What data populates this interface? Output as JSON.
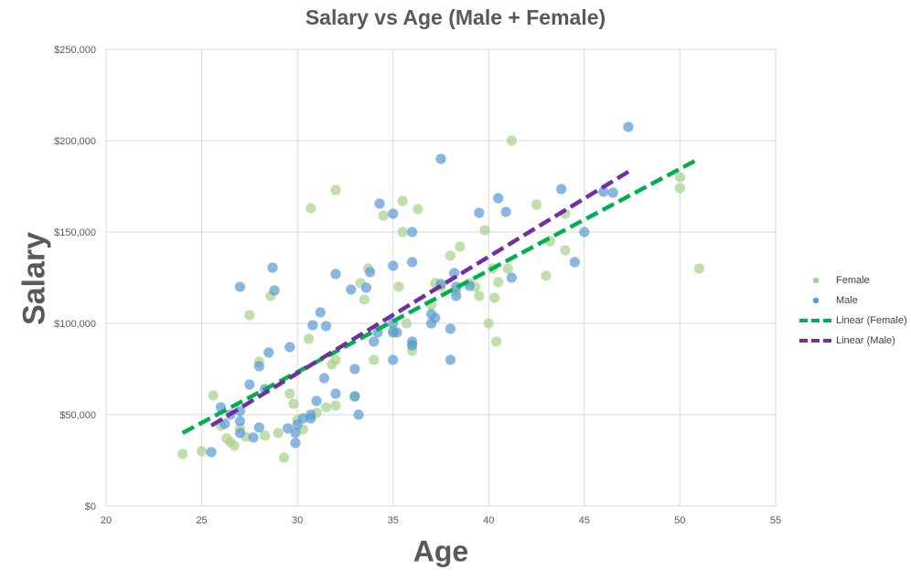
{
  "chart_data": {
    "type": "scatter",
    "title": "Salary vs Age (Male + Female)",
    "xlabel": "Age",
    "ylabel": "Salary",
    "xlim": [
      20,
      55
    ],
    "ylim": [
      0,
      250000
    ],
    "x_ticks": [
      "20",
      "25",
      "30",
      "35",
      "40",
      "45",
      "50",
      "55"
    ],
    "y_ticks": [
      "$0",
      "$50,000",
      "$100,000",
      "$150,000",
      "$200,000",
      "$250,000"
    ],
    "x_tick_values": [
      20,
      25,
      30,
      35,
      40,
      45,
      50,
      55
    ],
    "y_tick_values": [
      0,
      50000,
      100000,
      150000,
      200000,
      250000
    ],
    "grid": true,
    "legend_position": "right",
    "series": [
      {
        "name": "Female",
        "color": "#a9d18e",
        "points": [
          [
            24,
            28500
          ],
          [
            25,
            30000
          ],
          [
            25.6,
            60500
          ],
          [
            26,
            44000
          ],
          [
            26.3,
            37000
          ],
          [
            26.5,
            35000
          ],
          [
            26.7,
            33000
          ],
          [
            27,
            42500
          ],
          [
            27.3,
            38000
          ],
          [
            27.5,
            104500
          ],
          [
            28,
            79000
          ],
          [
            28.3,
            38500
          ],
          [
            28.6,
            115000
          ],
          [
            29,
            40000
          ],
          [
            29.3,
            26500
          ],
          [
            29.6,
            61500
          ],
          [
            29.8,
            56000
          ],
          [
            30,
            47000
          ],
          [
            30.3,
            42000
          ],
          [
            30.6,
            91500
          ],
          [
            30.7,
            163000
          ],
          [
            31,
            51000
          ],
          [
            31.5,
            54000
          ],
          [
            31.8,
            77500
          ],
          [
            32,
            55000
          ],
          [
            32,
            80000
          ],
          [
            32,
            173000
          ],
          [
            33,
            60000
          ],
          [
            33.3,
            122000
          ],
          [
            33.5,
            113000
          ],
          [
            33.7,
            130000
          ],
          [
            34,
            80000
          ],
          [
            34.5,
            159000
          ],
          [
            35,
            96000
          ],
          [
            35.3,
            120000
          ],
          [
            35.5,
            167000
          ],
          [
            35.5,
            150000
          ],
          [
            35.7,
            100000
          ],
          [
            36,
            85000
          ],
          [
            36,
            88000
          ],
          [
            36.3,
            162500
          ],
          [
            37,
            110000
          ],
          [
            37.2,
            122000
          ],
          [
            37.5,
            120000
          ],
          [
            38,
            137000
          ],
          [
            38.3,
            118000
          ],
          [
            38.5,
            142000
          ],
          [
            39,
            122000
          ],
          [
            39.3,
            120000
          ],
          [
            39.5,
            115000
          ],
          [
            39.8,
            151000
          ],
          [
            40,
            100000
          ],
          [
            40.2,
            130000
          ],
          [
            40.3,
            114000
          ],
          [
            40.4,
            90000
          ],
          [
            40.5,
            122500
          ],
          [
            41,
            130000
          ],
          [
            41.2,
            200000
          ],
          [
            42.5,
            165000
          ],
          [
            43,
            126000
          ],
          [
            43.2,
            145000
          ],
          [
            44,
            160000
          ],
          [
            44,
            140000
          ],
          [
            50,
            174000
          ],
          [
            50,
            180000
          ],
          [
            51,
            130000
          ]
        ],
        "trendline": {
          "name": "Linear (Female)",
          "color": "#00b050",
          "x_range": [
            24,
            50.8
          ],
          "y_range": [
            40000,
            189000
          ]
        }
      },
      {
        "name": "Male",
        "color": "#5b9bd5",
        "points": [
          [
            25.5,
            29500
          ],
          [
            26,
            54000
          ],
          [
            26.2,
            45000
          ],
          [
            26.5,
            50000
          ],
          [
            27,
            120000
          ],
          [
            27,
            46500
          ],
          [
            27,
            40000
          ],
          [
            27,
            52000
          ],
          [
            27.5,
            66500
          ],
          [
            27.7,
            37500
          ],
          [
            28,
            76500
          ],
          [
            28,
            43000
          ],
          [
            28.3,
            64000
          ],
          [
            28.5,
            84000
          ],
          [
            28.7,
            130500
          ],
          [
            28.8,
            118000
          ],
          [
            29.5,
            42500
          ],
          [
            29.6,
            87000
          ],
          [
            29.9,
            34500
          ],
          [
            29.9,
            40000
          ],
          [
            30,
            44500
          ],
          [
            30.3,
            48000
          ],
          [
            30.7,
            50000
          ],
          [
            30.7,
            48000
          ],
          [
            30.8,
            99000
          ],
          [
            31,
            57500
          ],
          [
            31.2,
            106000
          ],
          [
            31.4,
            70000
          ],
          [
            31.5,
            98500
          ],
          [
            32,
            127000
          ],
          [
            32,
            61500
          ],
          [
            32.8,
            118500
          ],
          [
            33,
            75000
          ],
          [
            33,
            60000
          ],
          [
            33.2,
            50000
          ],
          [
            33.6,
            119500
          ],
          [
            33.8,
            128000
          ],
          [
            34,
            90000
          ],
          [
            34.2,
            95000
          ],
          [
            34.3,
            165500
          ],
          [
            35,
            131500
          ],
          [
            35,
            160000
          ],
          [
            35,
            100000
          ],
          [
            35,
            80000
          ],
          [
            35,
            95000
          ],
          [
            35.2,
            95000
          ],
          [
            36,
            150000
          ],
          [
            36,
            133500
          ],
          [
            36,
            90000
          ],
          [
            36,
            88000
          ],
          [
            37,
            105000
          ],
          [
            37,
            100000
          ],
          [
            37.2,
            103000
          ],
          [
            37.5,
            190000
          ],
          [
            37.5,
            121500
          ],
          [
            38,
            97000
          ],
          [
            38.2,
            127500
          ],
          [
            38.3,
            115000
          ],
          [
            38.3,
            120000
          ],
          [
            38,
            80000
          ],
          [
            39,
            120500
          ],
          [
            39.5,
            160500
          ],
          [
            40.5,
            168500
          ],
          [
            40.9,
            161000
          ],
          [
            41.2,
            125000
          ],
          [
            43.8,
            173500
          ],
          [
            44.5,
            133500
          ],
          [
            45,
            150000
          ],
          [
            46,
            172000
          ],
          [
            46.5,
            171500
          ],
          [
            47.3,
            207500
          ]
        ],
        "trendline": {
          "name": "Linear (Male)",
          "color": "#7030a0",
          "x_range": [
            25.5,
            47.3
          ],
          "y_range": [
            44000,
            183000
          ]
        }
      }
    ]
  }
}
